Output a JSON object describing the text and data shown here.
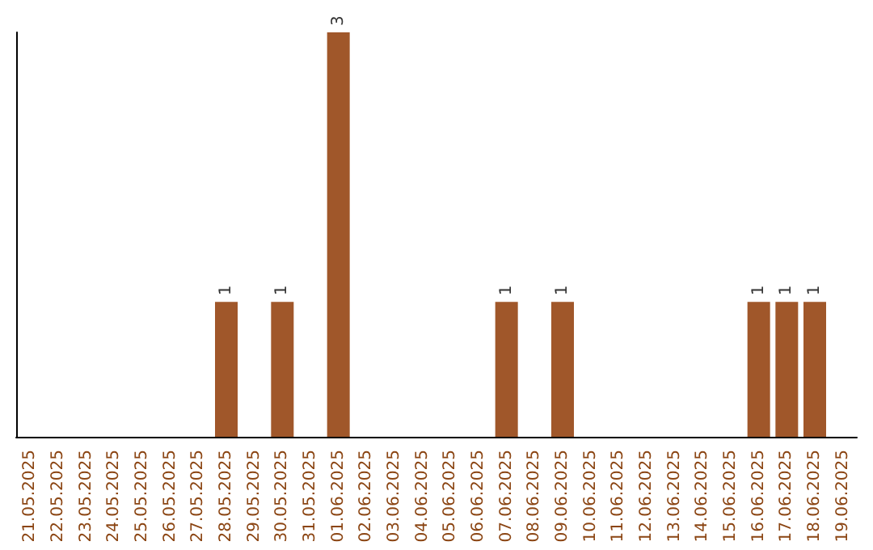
{
  "chart_data": {
    "type": "bar",
    "categories": [
      "21.05.2025",
      "22.05.2025",
      "23.05.2025",
      "24.05.2025",
      "25.05.2025",
      "26.05.2025",
      "27.05.2025",
      "28.05.2025",
      "29.05.2025",
      "30.05.2025",
      "31.05.2025",
      "01.06.2025",
      "02.06.2025",
      "03.06.2025",
      "04.06.2025",
      "05.06.2025",
      "06.06.2025",
      "07.06.2025",
      "08.06.2025",
      "09.06.2025",
      "10.06.2025",
      "11.06.2025",
      "12.06.2025",
      "13.06.2025",
      "14.06.2025",
      "15.06.2025",
      "16.06.2025",
      "17.06.2025",
      "18.06.2025",
      "19.06.2025"
    ],
    "values": [
      0,
      0,
      0,
      0,
      0,
      0,
      0,
      1,
      0,
      1,
      0,
      3,
      0,
      0,
      0,
      0,
      0,
      1,
      0,
      1,
      0,
      0,
      0,
      0,
      0,
      0,
      1,
      1,
      1,
      0
    ],
    "value_labels": [
      null,
      null,
      null,
      null,
      null,
      null,
      null,
      "1",
      null,
      "1",
      null,
      "3",
      null,
      null,
      null,
      null,
      null,
      "1",
      null,
      "1",
      null,
      null,
      null,
      null,
      null,
      null,
      "1",
      "1",
      "1",
      null
    ],
    "color": "#a0572a",
    "tick_labels": "x",
    "grid": false
  }
}
